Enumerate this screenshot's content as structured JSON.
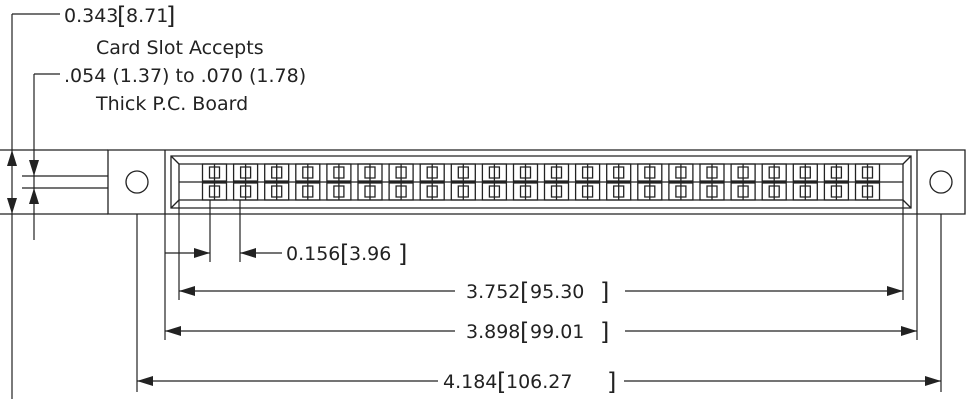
{
  "dimensions": {
    "height_in": "0.343",
    "height_mm": "8.71",
    "pitch_in": "0.156",
    "pitch_mm": "3.96",
    "contacts_span_in": "3.752",
    "contacts_span_mm": "95.30",
    "body_inner_in": "3.898",
    "body_inner_mm": "99.01",
    "overall_in": "4.184",
    "overall_mm": "106.27"
  },
  "note": {
    "line1": "Card Slot Accepts",
    "line2": ".054 (1.37) to .070 (1.78)",
    "line3": "Thick P.C. Board"
  },
  "contact_positions": 22,
  "colors": {
    "line": "#222222",
    "background": "#ffffff"
  }
}
